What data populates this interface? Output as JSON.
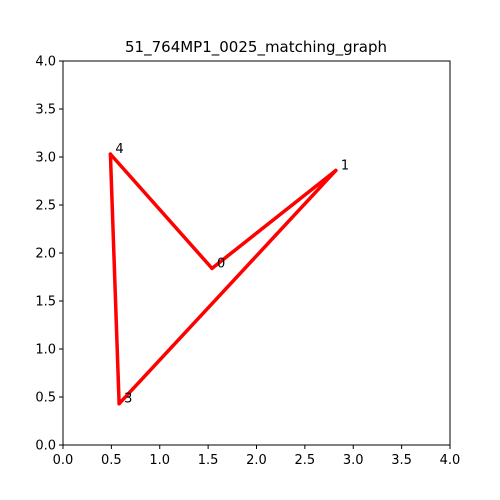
{
  "chart_data": {
    "type": "line",
    "title": "51_764MP1_0025_matching_graph",
    "xlabel": "",
    "ylabel": "",
    "xlim": [
      0,
      4
    ],
    "ylim": [
      0,
      4
    ],
    "x_ticks": [
      "0.0",
      "0.5",
      "1.0",
      "1.5",
      "2.0",
      "2.5",
      "3.0",
      "3.5",
      "4.0"
    ],
    "y_ticks": [
      "0.0",
      "0.5",
      "1.0",
      "1.5",
      "2.0",
      "2.5",
      "3.0",
      "3.5",
      "4.0"
    ],
    "grid": false,
    "edge_color": "#ff0000",
    "nodes": [
      {
        "label": "0",
        "x": 1.54,
        "y": 1.84
      },
      {
        "label": "1",
        "x": 2.82,
        "y": 2.86
      },
      {
        "label": "3",
        "x": 0.58,
        "y": 0.43
      },
      {
        "label": "4",
        "x": 0.49,
        "y": 3.03
      }
    ],
    "edges": [
      {
        "from": "0",
        "to": "1"
      },
      {
        "from": "0",
        "to": "4"
      },
      {
        "from": "4",
        "to": "3"
      },
      {
        "from": "3",
        "to": "1"
      }
    ]
  }
}
